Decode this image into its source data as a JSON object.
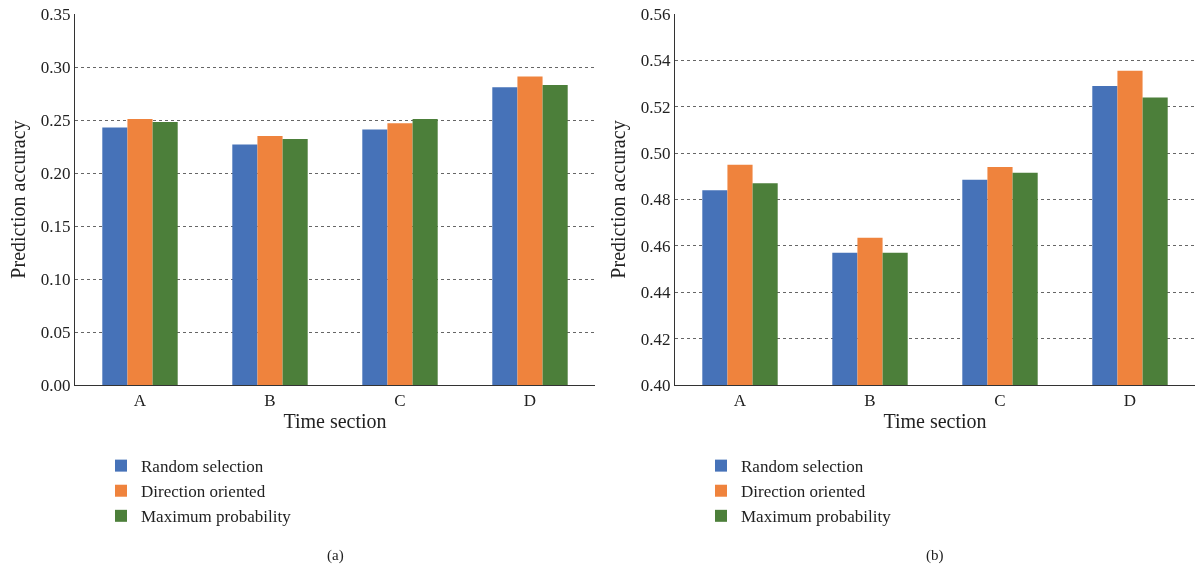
{
  "chart_data": [
    {
      "type": "bar",
      "categories": [
        "A",
        "B",
        "C",
        "D"
      ],
      "xlabel": "Time section",
      "ylabel": "Prediction accuracy",
      "series": [
        {
          "name": "Random selection",
          "color": "#4672b8",
          "values": [
            0.243,
            0.227,
            0.241,
            0.281
          ]
        },
        {
          "name": "Direction oriented",
          "color": "#ef833d",
          "values": [
            0.251,
            0.235,
            0.247,
            0.291
          ]
        },
        {
          "name": "Maximum probability",
          "color": "#4c7f3a",
          "values": [
            0.248,
            0.232,
            0.251,
            0.283
          ]
        }
      ],
      "ylim": [
        0,
        0.35
      ],
      "yticks": [
        {
          "value": 0,
          "label": "0.00"
        },
        0.05,
        {
          "value": 0.1,
          "label": "0.10"
        },
        0.15,
        {
          "value": 0.2,
          "label": "0.20"
        },
        0.25,
        {
          "value": 0.3,
          "label": "0.30"
        },
        0.35
      ],
      "grid": "y",
      "legend": "bottom left",
      "annotations": [
        "(a)"
      ]
    },
    {
      "type": "bar",
      "categories": [
        "A",
        "B",
        "C",
        "D"
      ],
      "xlabel": "Time section",
      "ylabel": "Prediction accuracy",
      "series": [
        {
          "name": "Random selection",
          "color": "#4672b8",
          "values": [
            0.484,
            0.457,
            0.4885,
            0.529
          ]
        },
        {
          "name": "Direction oriented",
          "color": "#ef833d",
          "values": [
            0.495,
            0.4635,
            0.494,
            0.5355
          ]
        },
        {
          "name": "Maximum probability",
          "color": "#4c7f3a",
          "values": [
            0.487,
            0.457,
            0.4915,
            0.524
          ]
        }
      ],
      "ylim": [
        0.4,
        0.56
      ],
      "yticks": [
        {
          "value": 0.4,
          "label": "0.40"
        },
        0.42,
        0.44,
        0.46,
        0.48,
        {
          "value": 0.5,
          "label": "0.50"
        },
        0.52,
        0.54,
        0.56
      ],
      "grid": "y",
      "legend": "bottom left",
      "annotations": [
        "(b)"
      ]
    }
  ]
}
